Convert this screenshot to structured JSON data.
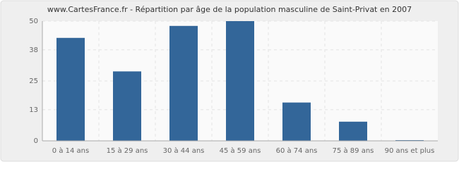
{
  "chart_data": {
    "type": "bar",
    "title": "www.CartesFrance.fr - Répartition par âge de la population masculine de Saint-Privat en 2007",
    "categories": [
      "0 à 14 ans",
      "15 à 29 ans",
      "30 à 44 ans",
      "45 à 59 ans",
      "60 à 74 ans",
      "75 à 89 ans",
      "90 ans et plus"
    ],
    "values": [
      43,
      29,
      48,
      50,
      16,
      8,
      0
    ],
    "color": "#336699",
    "ylim": [
      0,
      50
    ],
    "yticks": [
      0,
      13,
      25,
      38,
      50
    ],
    "grid": true
  }
}
